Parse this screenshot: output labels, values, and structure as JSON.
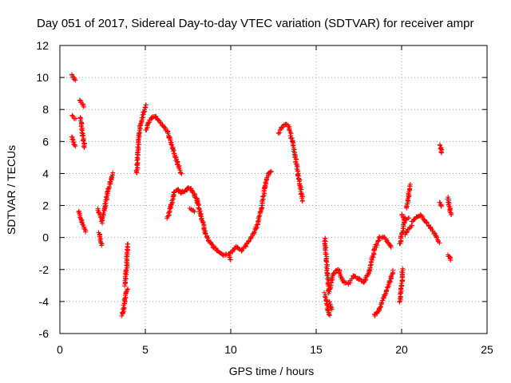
{
  "chart_data": {
    "type": "scatter",
    "title": "Day 051 of 2017, Sidereal Day-to-day VTEC variation (SDTVAR) for receiver ampr",
    "xlabel": "GPS time / hours",
    "ylabel": "SDTVAR / TECUs",
    "xlim": [
      0,
      25
    ],
    "ylim": [
      -6,
      12
    ],
    "xticks": [
      0,
      5,
      10,
      15,
      20,
      25
    ],
    "yticks": [
      -6,
      -4,
      -2,
      0,
      2,
      4,
      6,
      8,
      10,
      12
    ],
    "grid": true,
    "marker": "+",
    "color": "#ff0000",
    "series": [
      {
        "name": "SDTVAR",
        "segments": [
          {
            "x": [
              0.7,
              0.9
            ],
            "y": [
              10.2,
              9.8
            ]
          },
          {
            "x": [
              0.7,
              0.9
            ],
            "y": [
              7.6,
              7.4
            ]
          },
          {
            "x": [
              0.7,
              0.9
            ],
            "y": [
              6.3,
              5.7
            ]
          },
          {
            "x": [
              1.15,
              1.4
            ],
            "y": [
              8.6,
              8.2
            ]
          },
          {
            "x": [
              1.2,
              1.45
            ],
            "y": [
              7.5,
              5.6
            ]
          },
          {
            "x": [
              1.1,
              1.5
            ],
            "y": [
              1.6,
              0.4
            ]
          },
          {
            "x": [
              2.2,
              2.4
            ],
            "y": [
              1.8,
              1.2
            ]
          },
          {
            "x": [
              2.3,
              2.45
            ],
            "y": [
              0.3,
              -0.5
            ]
          },
          {
            "x": [
              2.45,
              2.65,
              2.8,
              3.0,
              3.1
            ],
            "y": [
              0.9,
              2.0,
              2.9,
              3.6,
              4.0
            ]
          },
          {
            "x": [
              3.65,
              3.8,
              3.95
            ],
            "y": [
              -4.9,
              -4.0,
              -3.2
            ]
          },
          {
            "x": [
              3.8,
              3.9,
              3.95,
              4.0
            ],
            "y": [
              -3.0,
              -2.0,
              -0.8,
              -0.4
            ]
          },
          {
            "x": [
              4.5,
              4.55,
              4.7,
              4.9,
              5.05
            ],
            "y": [
              4.0,
              5.3,
              7.0,
              7.8,
              8.3
            ]
          },
          {
            "x": [
              5.05,
              5.2,
              5.4,
              5.6,
              6.0,
              6.3,
              6.6,
              6.9,
              7.1
            ],
            "y": [
              6.7,
              7.2,
              7.5,
              7.6,
              7.0,
              6.6,
              5.6,
              4.6,
              4.0
            ]
          },
          {
            "x": [
              6.3,
              6.5,
              6.7,
              6.9,
              7.1,
              7.3,
              7.5,
              7.7,
              7.9,
              8.1
            ],
            "y": [
              1.2,
              2.0,
              2.8,
              3.0,
              2.8,
              2.9,
              3.1,
              3.0,
              2.6,
              2.1
            ]
          },
          {
            "x": [
              7.6,
              7.9
            ],
            "y": [
              1.8,
              1.6
            ]
          },
          {
            "x": [
              8.0,
              8.3,
              8.5,
              8.7,
              9.0,
              9.3,
              9.6,
              9.9,
              10.0
            ],
            "y": [
              2.4,
              1.2,
              0.3,
              -0.2,
              -0.6,
              -0.9,
              -1.1,
              -1.0,
              -1.4
            ]
          },
          {
            "x": [
              10.0,
              10.3,
              10.6,
              10.9,
              11.2,
              11.5,
              11.8,
              12.0,
              12.2,
              12.4
            ],
            "y": [
              -1.0,
              -0.6,
              -0.8,
              -0.5,
              0.0,
              0.6,
              1.8,
              3.2,
              4.0,
              4.1
            ]
          },
          {
            "x": [
              12.8,
              13.0,
              13.2,
              13.4,
              13.6,
              13.8,
              14.0,
              14.2
            ],
            "y": [
              6.5,
              6.9,
              7.1,
              6.9,
              6.0,
              4.9,
              3.6,
              2.3
            ]
          },
          {
            "x": [
              15.5,
              15.6,
              15.7,
              15.75
            ],
            "y": [
              0.0,
              -1.5,
              -2.8,
              -3.5
            ]
          },
          {
            "x": [
              15.5,
              15.6,
              15.7,
              15.8
            ],
            "y": [
              -3.5,
              -4.0,
              -4.6,
              -4.9
            ]
          },
          {
            "x": [
              15.8,
              15.9
            ],
            "y": [
              -4.0,
              -4.5
            ]
          },
          {
            "x": [
              15.8,
              16.0,
              16.3,
              16.6,
              16.9,
              17.2,
              17.5,
              17.8,
              18.1,
              18.4,
              18.7,
              19.0,
              19.2,
              19.4
            ],
            "y": [
              -3.2,
              -2.3,
              -2.0,
              -2.8,
              -2.9,
              -2.4,
              -2.6,
              -2.8,
              -2.1,
              -0.8,
              0.0,
              0.0,
              -0.3,
              -0.6
            ]
          },
          {
            "x": [
              18.4,
              18.7,
              19.0,
              19.3,
              19.5
            ],
            "y": [
              -4.9,
              -4.5,
              -3.6,
              -2.8,
              -2.1
            ]
          },
          {
            "x": [
              19.9,
              20.0,
              20.05
            ],
            "y": [
              -4.0,
              -3.0,
              -2.0
            ]
          },
          {
            "x": [
              19.9,
              20.1,
              20.2
            ],
            "y": [
              -0.4,
              0.6,
              1.3
            ]
          },
          {
            "x": [
              20.0,
              20.2,
              20.4
            ],
            "y": [
              1.4,
              1.1,
              1.2
            ]
          },
          {
            "x": [
              20.3,
              20.4,
              20.5
            ],
            "y": [
              1.8,
              2.6,
              3.3
            ]
          },
          {
            "x": [
              20.2,
              20.4,
              20.6
            ],
            "y": [
              0.2,
              0.5,
              0.8
            ]
          },
          {
            "x": [
              20.6,
              20.9,
              21.1,
              21.4,
              21.7,
              22.0,
              22.2
            ],
            "y": [
              1.0,
              1.3,
              1.4,
              1.0,
              0.6,
              0.1,
              -0.3
            ]
          },
          {
            "x": [
              22.25,
              22.35
            ],
            "y": [
              5.8,
              5.3
            ]
          },
          {
            "x": [
              22.25,
              22.35
            ],
            "y": [
              2.2,
              1.9
            ]
          },
          {
            "x": [
              22.7,
              22.9
            ],
            "y": [
              2.5,
              1.4
            ]
          },
          {
            "x": [
              22.7,
              22.9
            ],
            "y": [
              -1.1,
              -1.4
            ]
          }
        ]
      }
    ]
  }
}
